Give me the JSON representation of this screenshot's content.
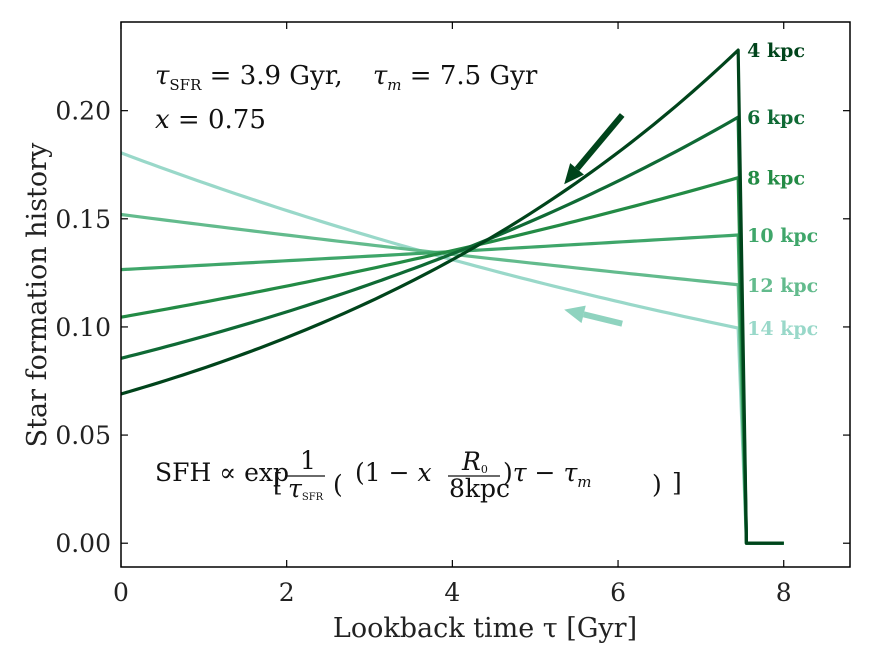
{
  "chart_data": {
    "type": "line",
    "xlabel": "Lookback time τ [Gyr]",
    "ylabel": "Star formation history",
    "xlim": [
      0,
      8.8
    ],
    "ylim": [
      -0.011,
      0.241
    ],
    "x_ticks": [
      0,
      2,
      4,
      6,
      8
    ],
    "x_tick_labels": [
      "0",
      "2",
      "4",
      "6",
      "8"
    ],
    "y_ticks": [
      0.0,
      0.05,
      0.1,
      0.15,
      0.2
    ],
    "y_tick_labels": [
      "0.00",
      "0.05",
      "0.10",
      "0.15",
      "0.20"
    ],
    "grid": false,
    "params": {
      "tau_sfr_text": "τSFR = 3.9 Gyr,",
      "tau_m_text": "τm = 7.5 Gyr",
      "x_text": "x = 0.75"
    },
    "formula_text": "SFH ∝ exp [ 1/τSFR ( (1 − x R0/8kpc) τ − τm ) ]",
    "cutoff_x": 7.45,
    "drop_x": 7.55,
    "x_end": 8.0,
    "series": [
      {
        "name": "4 kpc",
        "color": "#00441b",
        "y_at_0": 0.069,
        "y_at_cutoff": 0.228
      },
      {
        "name": "6 kpc",
        "color": "#0f6a35",
        "y_at_0": 0.0855,
        "y_at_cutoff": 0.197
      },
      {
        "name": "8 kpc",
        "color": "#238b45",
        "y_at_0": 0.1045,
        "y_at_cutoff": 0.169
      },
      {
        "name": "10 kpc",
        "color": "#3fa66a",
        "y_at_0": 0.1265,
        "y_at_cutoff": 0.1425
      },
      {
        "name": "12 kpc",
        "color": "#63bb8d",
        "y_at_0": 0.152,
        "y_at_cutoff": 0.1195
      },
      {
        "name": "14 kpc",
        "color": "#99d8c9",
        "y_at_0": 0.1805,
        "y_at_cutoff": 0.0995
      }
    ],
    "arrows": [
      {
        "color": "#00441b",
        "from": [
          6.05,
          0.198
        ],
        "to": [
          5.35,
          0.166
        ]
      },
      {
        "color": "#8fd3bf",
        "from": [
          6.05,
          0.1015
        ],
        "to": [
          5.35,
          0.108
        ]
      }
    ]
  }
}
